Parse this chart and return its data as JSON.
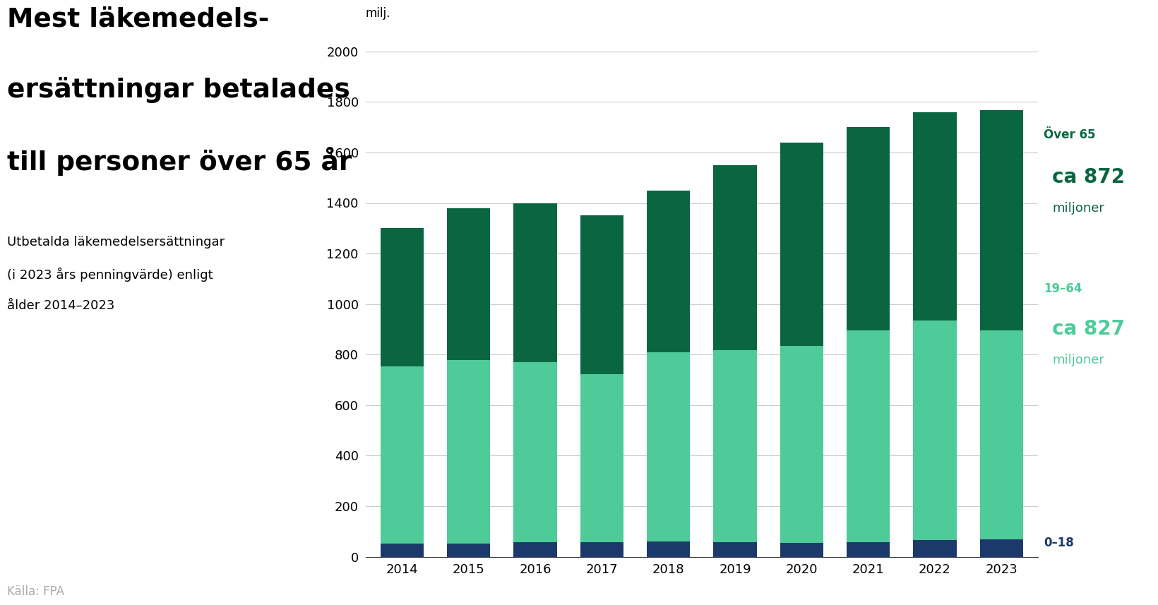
{
  "years": [
    2014,
    2015,
    2016,
    2017,
    2018,
    2019,
    2020,
    2021,
    2022,
    2023
  ],
  "age_0_18": [
    52,
    53,
    56,
    57,
    60,
    57,
    54,
    57,
    65,
    68
  ],
  "age_19_64": [
    700,
    725,
    715,
    665,
    750,
    760,
    780,
    840,
    870,
    827
  ],
  "age_over65": [
    548,
    600,
    629,
    628,
    640,
    733,
    806,
    803,
    825,
    872
  ],
  "color_0_18": "#1b3a6b",
  "color_19_64": "#4ecb99",
  "color_over65": "#0a6640",
  "title_line1": "Mest läkemedels-",
  "title_line2": "ersättningar betalades",
  "title_line3": "till personer över 65 år",
  "subtitle_line1": "Utbetalda läkemedelsersättningar",
  "subtitle_line2": "(i 2023 års penningvärde) enligt",
  "subtitle_line3": "ålder 2014–2023",
  "ylabel": "milj.",
  "source": "Källa: FPA",
  "label_over65": "Över 65",
  "label_19_64": "19–64",
  "label_0_18": "0–18",
  "annotation_over65_val": "ca 872",
  "annotation_over65_unit": "miljoner",
  "annotation_19_64_val": "ca 827",
  "annotation_19_64_unit": "miljoner",
  "ylim": [
    0,
    2100
  ],
  "yticks": [
    0,
    200,
    400,
    600,
    800,
    1000,
    1200,
    1400,
    1600,
    1800,
    2000
  ],
  "background_color": "#ffffff"
}
